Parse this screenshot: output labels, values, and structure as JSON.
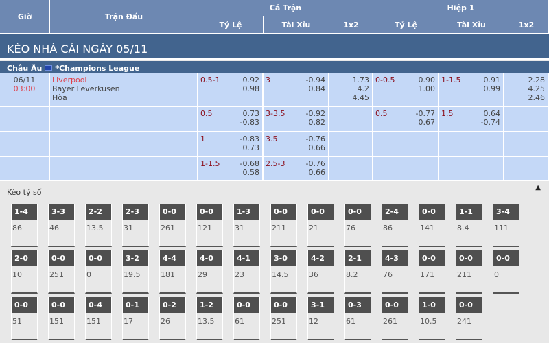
{
  "header": {
    "gio": "Giờ",
    "tran_dau": "Trận Đấu",
    "ca_tran": "Cả Trận",
    "hiep1": "Hiệp 1",
    "ty_le": "Tỷ Lệ",
    "tai_xiu": "Tài Xỉu",
    "x12": "1x2"
  },
  "banner": "KÈO NHÀ CÁI NGÀY 05/11",
  "league": {
    "region": "Châu Âu",
    "name": "*Champions League"
  },
  "match": {
    "date": "06/11",
    "time": "03:00",
    "home": "Liverpool",
    "away": "Bayer Leverkusen",
    "draw": "Hòa"
  },
  "rows": [
    {
      "ft_hdp": "0.5-1",
      "ft_hdp_o": [
        "0.92",
        "0.98"
      ],
      "ft_ou": "3",
      "ft_ou_o": [
        "-0.94",
        "0.84"
      ],
      "ft_1x2": [
        "1.73",
        "4.2",
        "4.45"
      ],
      "h1_hdp": "0-0.5",
      "h1_hdp_o": [
        "0.90",
        "1.00"
      ],
      "h1_ou": "1-1.5",
      "h1_ou_o": [
        "0.91",
        "0.99"
      ],
      "h1_1x2": [
        "2.28",
        "4.25",
        "2.46"
      ]
    },
    {
      "ft_hdp": "0.5",
      "ft_hdp_o": [
        "0.73",
        "-0.83"
      ],
      "ft_ou": "3-3.5",
      "ft_ou_o": [
        "-0.92",
        "0.82"
      ],
      "ft_1x2": [
        "",
        "",
        ""
      ],
      "h1_hdp": "0.5",
      "h1_hdp_o": [
        "-0.77",
        "0.67"
      ],
      "h1_ou": "1.5",
      "h1_ou_o": [
        "0.64",
        "-0.74"
      ],
      "h1_1x2": [
        "",
        "",
        ""
      ]
    },
    {
      "ft_hdp": "1",
      "ft_hdp_o": [
        "-0.83",
        "0.73"
      ],
      "ft_ou": "3.5",
      "ft_ou_o": [
        "-0.76",
        "0.66"
      ],
      "ft_1x2": [
        "",
        "",
        ""
      ],
      "h1_hdp": "",
      "h1_hdp_o": [
        "",
        ""
      ],
      "h1_ou": "",
      "h1_ou_o": [
        "",
        ""
      ],
      "h1_1x2": [
        "",
        "",
        ""
      ]
    },
    {
      "ft_hdp": "1-1.5",
      "ft_hdp_o": [
        "-0.68",
        "0.58"
      ],
      "ft_ou": "2.5-3",
      "ft_ou_o": [
        "-0.76",
        "0.66"
      ],
      "ft_1x2": [
        "",
        "",
        ""
      ],
      "h1_hdp": "",
      "h1_hdp_o": [
        "",
        ""
      ],
      "h1_ou": "",
      "h1_ou_o": [
        "",
        ""
      ],
      "h1_1x2": [
        "",
        "",
        ""
      ]
    }
  ],
  "correct_score": {
    "title": "Kèo tỷ số",
    "collapse_icon": "triangle-up-icon",
    "rows": [
      [
        [
          "1-4",
          "86"
        ],
        [
          "3-3",
          "46"
        ],
        [
          "2-2",
          "13.5"
        ],
        [
          "2-3",
          "31"
        ],
        [
          "0-0",
          "261"
        ],
        [
          "0-0",
          "121"
        ],
        [
          "1-3",
          "31"
        ],
        [
          "0-0",
          "211"
        ],
        [
          "0-0",
          "21"
        ],
        [
          "0-0",
          "76"
        ],
        [
          "2-4",
          "86"
        ],
        [
          "0-0",
          "141"
        ],
        [
          "1-1",
          "8.4"
        ],
        [
          "3-4",
          "111"
        ]
      ],
      [
        [
          "2-0",
          "10"
        ],
        [
          "0-0",
          "251"
        ],
        [
          "0-0",
          "0"
        ],
        [
          "3-2",
          "19.5"
        ],
        [
          "4-4",
          "181"
        ],
        [
          "4-0",
          "29"
        ],
        [
          "4-1",
          "23"
        ],
        [
          "3-0",
          "14.5"
        ],
        [
          "4-2",
          "36"
        ],
        [
          "2-1",
          "8.2"
        ],
        [
          "4-3",
          "76"
        ],
        [
          "0-0",
          "171"
        ],
        [
          "0-0",
          "211"
        ],
        [
          "0-0",
          "0"
        ]
      ],
      [
        [
          "0-0",
          "51"
        ],
        [
          "0-0",
          "151"
        ],
        [
          "0-4",
          "151"
        ],
        [
          "0-1",
          "17"
        ],
        [
          "0-2",
          "26"
        ],
        [
          "1-2",
          "13.5"
        ],
        [
          "0-0",
          "61"
        ],
        [
          "0-0",
          "251"
        ],
        [
          "3-1",
          "12"
        ],
        [
          "0-3",
          "61"
        ],
        [
          "0-0",
          "261"
        ],
        [
          "1-0",
          "10.5"
        ],
        [
          "0-0",
          "241"
        ]
      ]
    ]
  }
}
